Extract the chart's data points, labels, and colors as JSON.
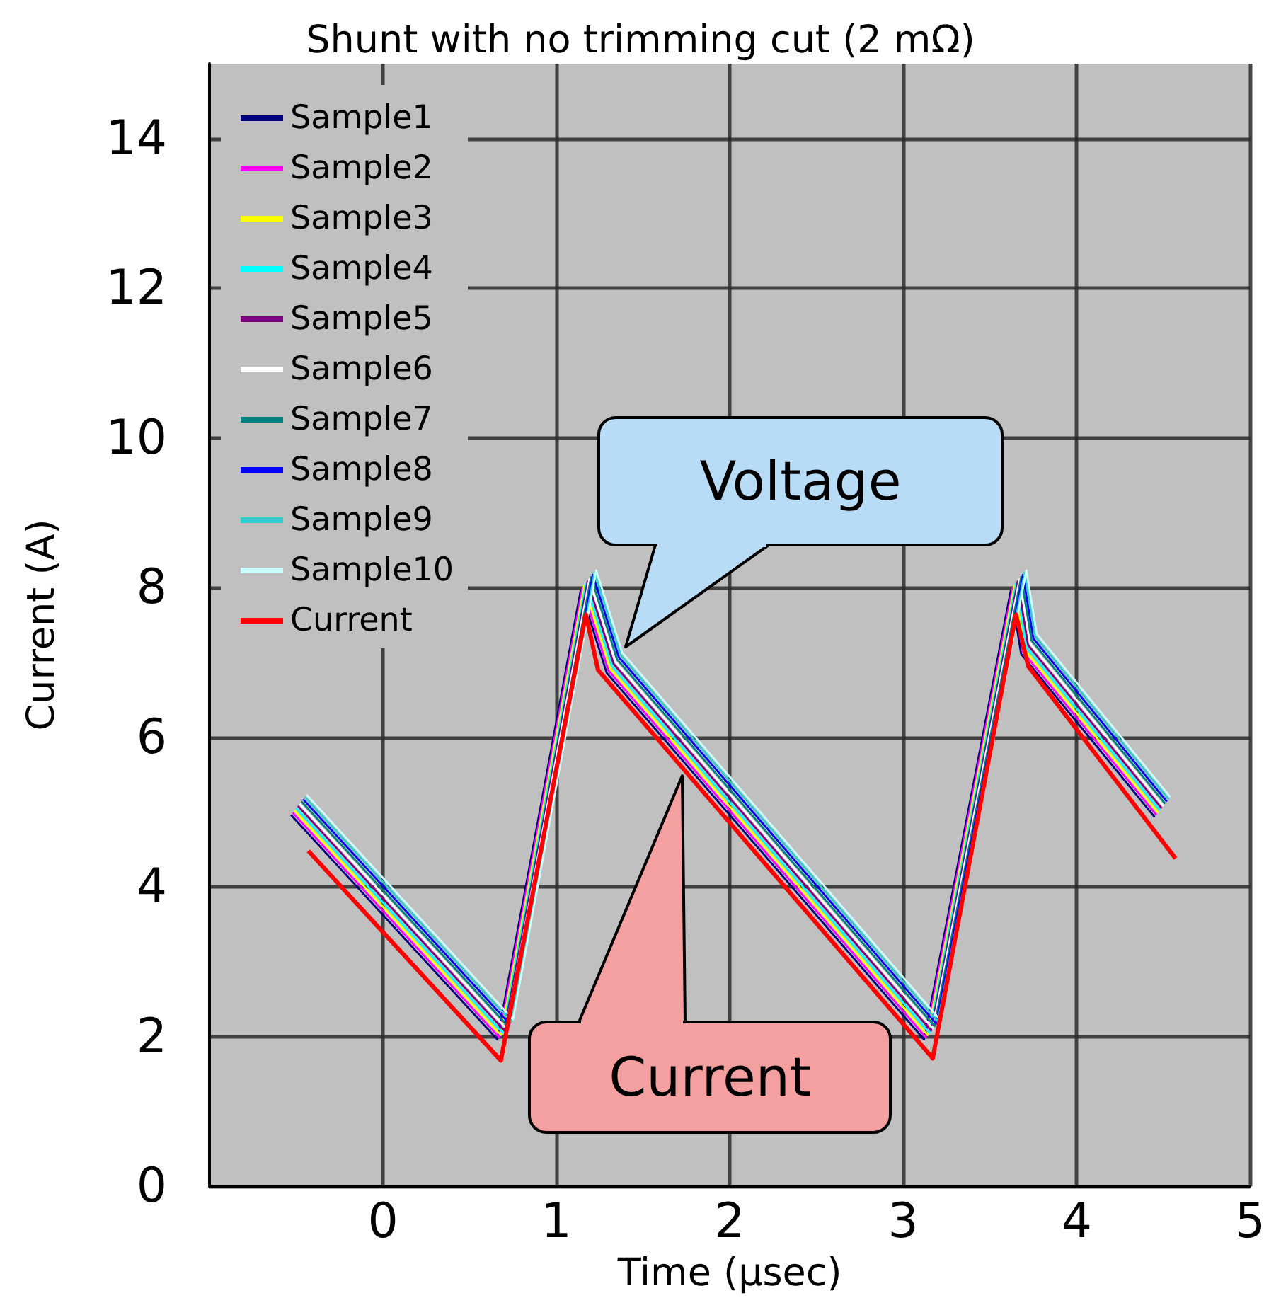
{
  "chart_data": {
    "type": "line",
    "title": "Shunt with no trimming cut (2 mΩ)",
    "xlabel": "Time (µsec)",
    "ylabel": "Current (A)",
    "xlim": [
      -1,
      5
    ],
    "xticks": [
      0,
      1,
      2,
      3,
      4,
      5
    ],
    "ylim": [
      0,
      15
    ],
    "yticks": [
      0,
      2,
      4,
      6,
      8,
      10,
      12,
      14
    ],
    "grid": true,
    "legend": "top left",
    "marker": "none",
    "line_style": "solid",
    "series": [
      {
        "name": "Sample1",
        "color": "#000080",
        "x": [
          -0.53,
          0.66,
          1.14,
          1.29,
          3.12,
          3.62,
          3.68,
          4.45
        ],
        "values": [
          4.96,
          1.96,
          7.96,
          6.86,
          1.96,
          7.96,
          7.11,
          4.93
        ]
      },
      {
        "name": "Sample2",
        "color": "#ff00ff",
        "x": [
          -0.52,
          0.67,
          1.15,
          1.3,
          3.13,
          3.63,
          3.69,
          4.46
        ],
        "values": [
          4.99,
          1.99,
          7.99,
          6.89,
          1.99,
          7.99,
          7.14,
          4.96
        ]
      },
      {
        "name": "Sample3",
        "color": "#ffff00",
        "x": [
          -0.51,
          0.68,
          1.16,
          1.31,
          3.14,
          3.64,
          3.7,
          4.47
        ],
        "values": [
          5.02,
          2.02,
          8.02,
          6.92,
          2.02,
          8.02,
          7.17,
          4.99
        ]
      },
      {
        "name": "Sample4",
        "color": "#00ffff",
        "x": [
          -0.5,
          0.69,
          1.17,
          1.32,
          3.15,
          3.65,
          3.71,
          4.48
        ],
        "values": [
          5.05,
          2.05,
          8.05,
          6.95,
          2.05,
          8.05,
          7.2,
          5.02
        ]
      },
      {
        "name": "Sample5",
        "color": "#800080",
        "x": [
          -0.49,
          0.7,
          1.18,
          1.33,
          3.16,
          3.66,
          3.72,
          4.49
        ],
        "values": [
          5.08,
          2.08,
          8.08,
          6.98,
          2.08,
          8.08,
          7.23,
          5.05
        ]
      },
      {
        "name": "Sample6",
        "color": "#ffffff",
        "x": [
          -0.48,
          0.71,
          1.19,
          1.34,
          3.17,
          3.67,
          3.73,
          4.5
        ],
        "values": [
          5.11,
          2.11,
          8.11,
          7.01,
          2.11,
          8.11,
          7.26,
          5.08
        ]
      },
      {
        "name": "Sample7",
        "color": "#008080",
        "x": [
          -0.47,
          0.72,
          1.2,
          1.35,
          3.18,
          3.68,
          3.74,
          4.51
        ],
        "values": [
          5.14,
          2.14,
          8.14,
          7.04,
          2.14,
          8.14,
          7.29,
          5.11
        ]
      },
      {
        "name": "Sample8",
        "color": "#0000ff",
        "x": [
          -0.46,
          0.73,
          1.21,
          1.36,
          3.19,
          3.69,
          3.75,
          4.52
        ],
        "values": [
          5.17,
          2.17,
          8.17,
          7.07,
          2.17,
          8.17,
          7.32,
          5.14
        ]
      },
      {
        "name": "Sample9",
        "color": "#33cccc",
        "x": [
          -0.45,
          0.74,
          1.22,
          1.37,
          3.2,
          3.7,
          3.76,
          4.53
        ],
        "values": [
          5.2,
          2.2,
          8.2,
          7.1,
          2.2,
          8.2,
          7.35,
          5.17
        ]
      },
      {
        "name": "Sample10",
        "color": "#ccffff",
        "x": [
          -0.44,
          0.75,
          1.23,
          1.38,
          3.21,
          3.71,
          3.77,
          4.54
        ],
        "values": [
          5.23,
          2.23,
          8.23,
          7.13,
          2.23,
          8.23,
          7.38,
          5.2
        ]
      },
      {
        "name": "Current",
        "color": "#ff0000",
        "x": [
          -0.43,
          0.68,
          1.17,
          1.24,
          3.17,
          3.65,
          3.72,
          4.57
        ],
        "values": [
          4.48,
          1.68,
          7.64,
          6.9,
          1.71,
          7.64,
          6.95,
          4.38
        ]
      }
    ],
    "annotations": [
      "Voltage",
      "Current"
    ]
  }
}
